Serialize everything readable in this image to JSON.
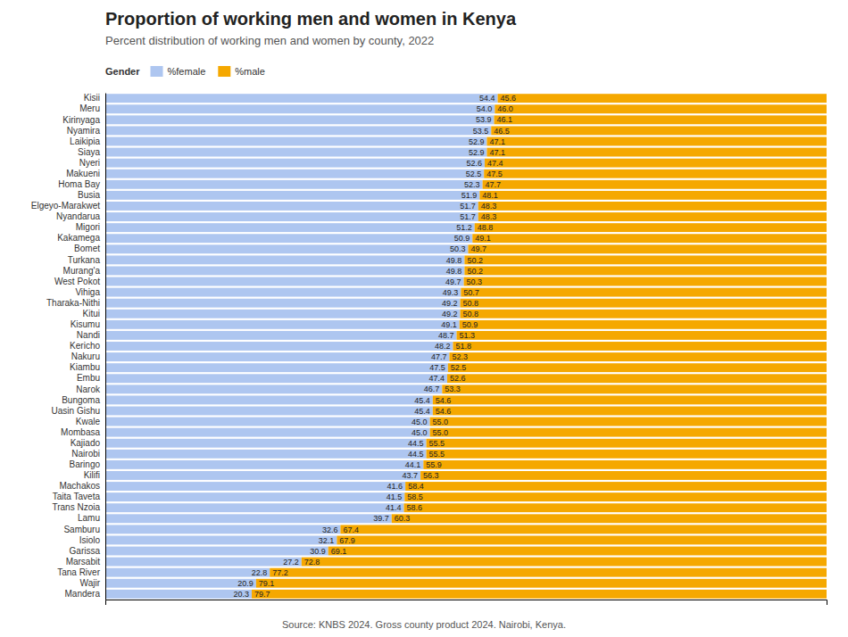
{
  "chart_data": {
    "type": "bar",
    "orientation": "horizontal",
    "stacked": true,
    "title": "Proportion of working men and women in Kenya",
    "subtitle": "Percent distribution of working men and women by county, 2022",
    "annotations": [
      "Source: KNBS 2024. Gross county product 2024. Nairobi, Kenya."
    ],
    "legend_title": "Gender",
    "legend": "top",
    "grid": false,
    "data_labels": true,
    "tick_labels": "y",
    "xlim": [
      0,
      100
    ],
    "xticks": [],
    "categories": [
      "Kisii",
      "Meru",
      "Kirinyaga",
      "Nyamira",
      "Laikipia",
      "Siaya",
      "Nyeri",
      "Makueni",
      "Homa Bay",
      "Busia",
      "Elgeyo-Marakwet",
      "Nyandarua",
      "Migori",
      "Kakamega",
      "Bomet",
      "Turkana",
      "Murang'a",
      "West Pokot",
      "Vihiga",
      "Tharaka-Nithi",
      "Kitui",
      "Kisumu",
      "Nandi",
      "Kericho",
      "Nakuru",
      "Kiambu",
      "Embu",
      "Narok",
      "Bungoma",
      "Uasin Gishu",
      "Kwale",
      "Mombasa",
      "Kajiado",
      "Nairobi",
      "Baringo",
      "Kilifi",
      "Machakos",
      "Taita Taveta",
      "Trans Nzoia",
      "Lamu",
      "Samburu",
      "Isiolo",
      "Garissa",
      "Marsabit",
      "Tana River",
      "Wajir",
      "Mandera"
    ],
    "series": [
      {
        "name": "%female",
        "color": "#aec6f0",
        "values": [
          54.4,
          54.0,
          53.9,
          53.5,
          52.9,
          52.9,
          52.6,
          52.5,
          52.3,
          51.9,
          51.7,
          51.7,
          51.2,
          50.9,
          50.3,
          49.8,
          49.8,
          49.7,
          49.3,
          49.2,
          49.2,
          49.1,
          48.7,
          48.2,
          47.7,
          47.5,
          47.4,
          46.7,
          45.4,
          45.4,
          45.0,
          45.0,
          44.5,
          44.5,
          44.1,
          43.7,
          41.6,
          41.5,
          41.4,
          39.7,
          32.6,
          32.1,
          30.9,
          27.2,
          22.8,
          20.9,
          20.3
        ],
        "value_labels": [
          "54.4",
          "54.0",
          "53.9",
          "53.5",
          "52.9",
          "52.9",
          "52.6",
          "52.5",
          "52.3",
          "51.9",
          "51.7",
          "51.7",
          "51.2",
          "50.9",
          "50.3",
          "49.8",
          "49.8",
          "49.7",
          "49.3",
          "49.2",
          "49.2",
          "49.1",
          "48.7",
          "48.2",
          "47.7",
          "47.5",
          "47.4",
          "46.7",
          "45.4",
          "45.4",
          "45.0",
          "45.0",
          "44.5",
          "44.5",
          "44.1",
          "43.7",
          "41.6",
          "41.5",
          "41.4",
          "39.7",
          "32.6",
          "32.1",
          "30.9",
          "27.2",
          "22.8",
          "20.9",
          "20.3"
        ]
      },
      {
        "name": "%male",
        "color": "#f5a800",
        "values": [
          45.6,
          46.0,
          46.1,
          46.5,
          47.1,
          47.1,
          47.4,
          47.5,
          47.7,
          48.1,
          48.3,
          48.3,
          48.8,
          49.1,
          49.7,
          50.2,
          50.2,
          50.3,
          50.7,
          50.8,
          50.8,
          50.9,
          51.3,
          51.8,
          52.3,
          52.5,
          52.6,
          53.3,
          54.6,
          54.6,
          55.0,
          55.0,
          55.5,
          55.5,
          55.9,
          56.3,
          58.4,
          58.5,
          58.6,
          60.3,
          67.4,
          67.9,
          69.1,
          72.8,
          77.2,
          79.1,
          79.7
        ],
        "value_labels": [
          "45.6",
          "46.0",
          "46.1",
          "46.5",
          "47.1",
          "47.1",
          "47.4",
          "47.5",
          "47.7",
          "48.1",
          "48.3",
          "48.3",
          "48.8",
          "49.1",
          "49.7",
          "50.2",
          "50.2",
          "50.3",
          "50.7",
          "50.8",
          "50.8",
          "50.9",
          "51.3",
          "51.8",
          "52.3",
          "52.5",
          "52.6",
          "53.3",
          "54.6",
          "54.6",
          "55.0",
          "55.0",
          "55.5",
          "55.5",
          "55.9",
          "56.3",
          "58.4",
          "58.5",
          "58.6",
          "60.3",
          "67.4",
          "67.9",
          "69.1",
          "72.8",
          "77.2",
          "79.1",
          "79.7"
        ]
      }
    ]
  }
}
